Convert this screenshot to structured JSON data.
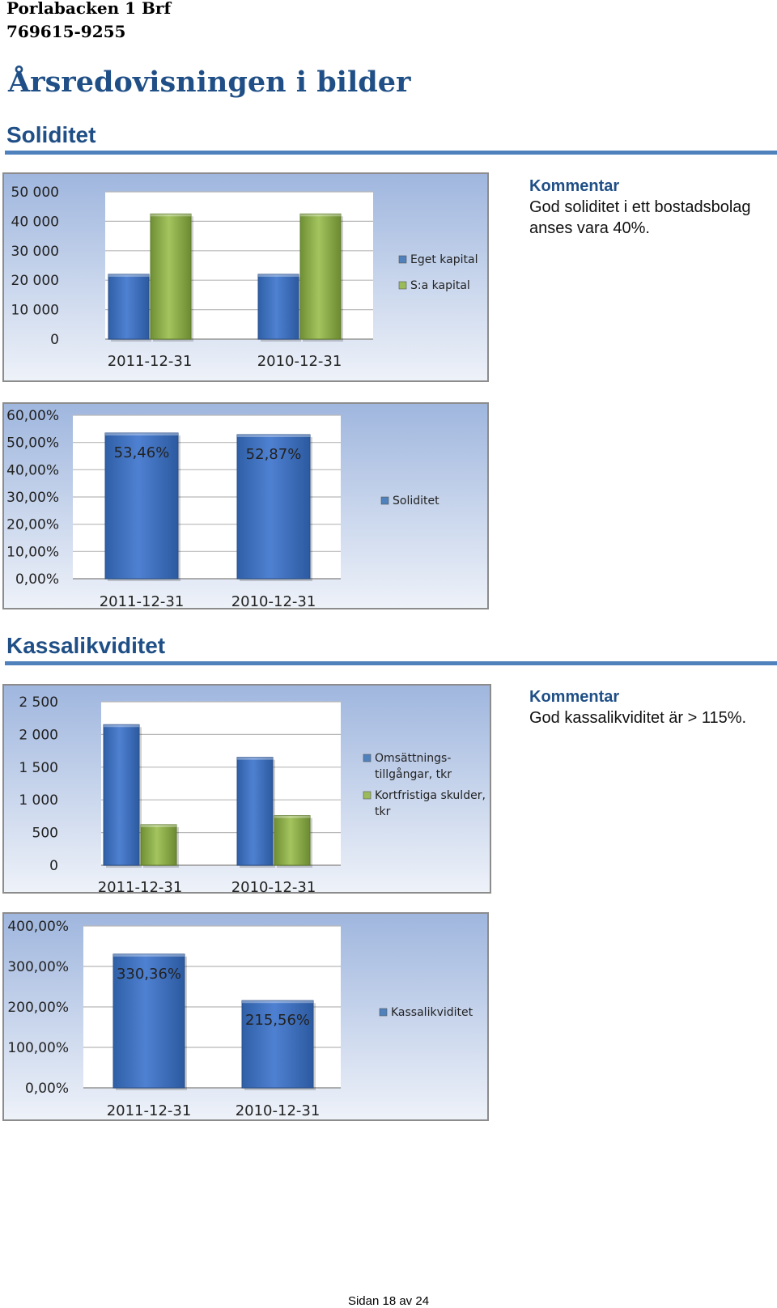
{
  "header": {
    "org_name": "Porlabacken 1 Brf",
    "org_number": "769615-9255",
    "title": "Årsredovisningen i bilder"
  },
  "sections": {
    "soliditet": "Soliditet",
    "kassalikviditet": "Kassalikviditet"
  },
  "comments": {
    "soliditet": {
      "heading": "Kommentar",
      "text": "God soliditet i ett bostadsbolag anses vara 40%."
    },
    "kassalikviditet": {
      "heading": "Kommentar",
      "text": "God kassalikviditet är > 115%."
    }
  },
  "colors": {
    "blue": "#4f81bd",
    "green": "#9bbb59",
    "heading": "#1f4f86"
  },
  "chart_data": [
    {
      "type": "bar",
      "categories": [
        "2011-12-31",
        "2010-12-31"
      ],
      "series": [
        {
          "name": "Eget kapital",
          "values": [
            22000,
            22000
          ]
        },
        {
          "name": "S:a kapital",
          "values": [
            42500,
            42500
          ]
        }
      ],
      "yticks": [
        "0",
        "10 000",
        "20 000",
        "30 000",
        "40 000",
        "50 000"
      ],
      "ylim": [
        0,
        50000
      ],
      "grid": true,
      "legend": "right"
    },
    {
      "type": "bar",
      "categories": [
        "2011-12-31",
        "2010-12-31"
      ],
      "series": [
        {
          "name": "Soliditet",
          "values": [
            53.46,
            52.87
          ]
        }
      ],
      "data_labels": [
        "53,46%",
        "52,87%"
      ],
      "yticks": [
        "0,00%",
        "10,00%",
        "20,00%",
        "30,00%",
        "40,00%",
        "50,00%",
        "60,00%"
      ],
      "ylim": [
        0,
        60
      ],
      "grid": true,
      "legend": "right"
    },
    {
      "type": "bar",
      "categories": [
        "2011-12-31",
        "2010-12-31"
      ],
      "series": [
        {
          "name": "Omsättnings- tillgångar, tkr",
          "values": [
            2150,
            1650
          ]
        },
        {
          "name": "Kortfristiga skulder, tkr",
          "values": [
            620,
            760
          ]
        }
      ],
      "yticks": [
        "0",
        "500",
        "1 000",
        "1 500",
        "2 000",
        "2 500"
      ],
      "ylim": [
        0,
        2500
      ],
      "grid": true,
      "legend": "right"
    },
    {
      "type": "bar",
      "categories": [
        "2011-12-31",
        "2010-12-31"
      ],
      "series": [
        {
          "name": "Kassalikviditet",
          "values": [
            330.36,
            215.56
          ]
        }
      ],
      "data_labels": [
        "330,36%",
        "215,56%"
      ],
      "yticks": [
        "0,00%",
        "100,00%",
        "200,00%",
        "300,00%",
        "400,00%"
      ],
      "ylim": [
        0,
        400
      ],
      "grid": true,
      "legend": "right"
    }
  ],
  "footer": {
    "page": "Sidan 18 av 24"
  }
}
